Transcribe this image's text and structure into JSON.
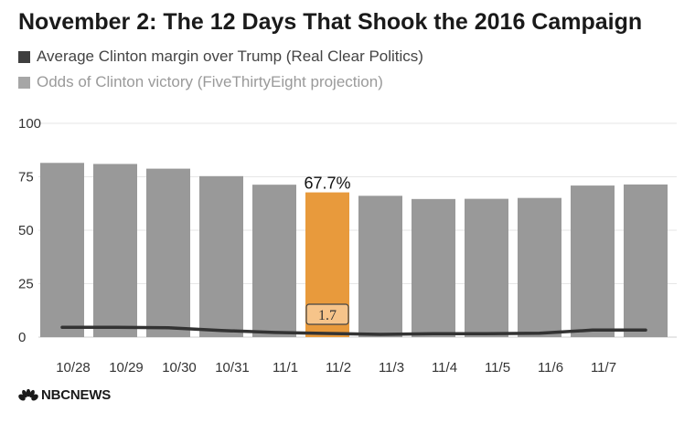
{
  "header": {
    "title": "November 2: The 12 Days That Shook the 2016 Campaign"
  },
  "legend": [
    {
      "label": "Average Clinton margin over Trump (Real Clear Politics)",
      "color": "#3f3f3f",
      "text_color": "#444444"
    },
    {
      "label": "Odds of Clinton victory (FiveThirtyEight projection)",
      "color": "#a6a6a6",
      "text_color": "#9a9a9a"
    }
  ],
  "chart_data": {
    "type": "bar",
    "categories": [
      "10/28",
      "10/29",
      "10/30",
      "10/31",
      "11/1",
      "11/2",
      "11/3",
      "11/4",
      "11/5",
      "11/6",
      "11/7",
      ""
    ],
    "series": [
      {
        "name": "Odds of Clinton victory (FiveThirtyEight projection)",
        "type": "bar",
        "values": [
          81.5,
          81.0,
          78.8,
          75.3,
          71.3,
          67.7,
          66.1,
          64.6,
          64.7,
          65.1,
          70.9,
          71.4
        ],
        "color": "#999999",
        "highlight_index": 5,
        "highlight_color": "#e89a3c",
        "highlight_label": "67.7%"
      },
      {
        "name": "Average Clinton margin over Trump (Real Clear Politics)",
        "type": "line",
        "values": [
          4.6,
          4.6,
          4.4,
          3.1,
          2.2,
          1.7,
          1.3,
          1.6,
          1.6,
          1.8,
          3.3,
          3.3
        ],
        "color": "#333333",
        "highlight_index": 5,
        "highlight_label": "1.7"
      }
    ],
    "yticks": [
      "0",
      "25",
      "50",
      "75",
      "100"
    ],
    "ylim": [
      0,
      100
    ],
    "grid": true
  },
  "footer": {
    "brand": "NBCNEWS"
  }
}
